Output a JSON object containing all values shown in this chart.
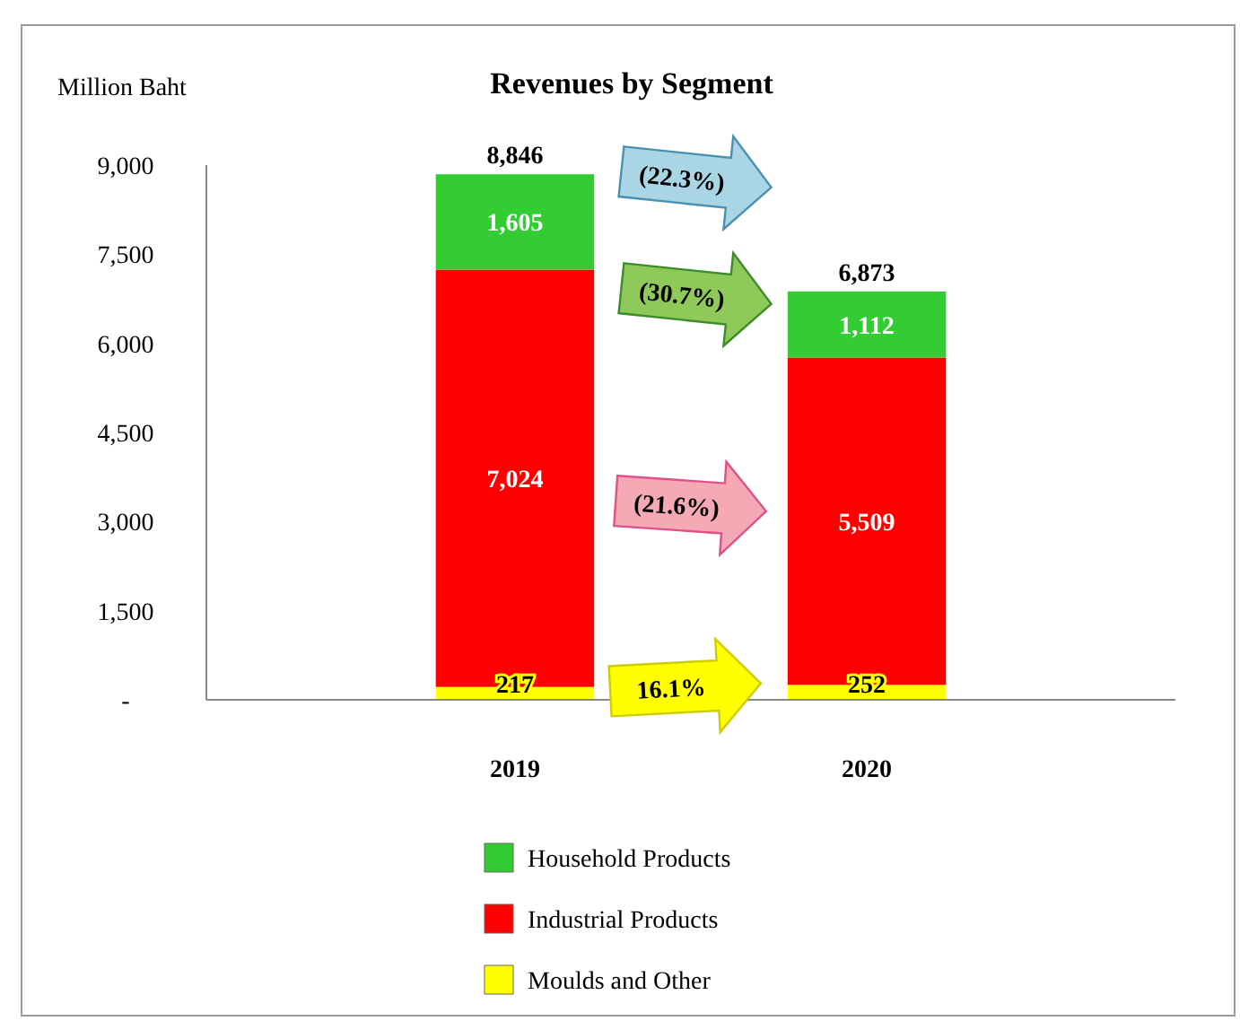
{
  "chart_data": {
    "type": "bar",
    "title": "Revenues by Segment",
    "ylabel": "Million  Baht",
    "categories": [
      "2019",
      "2020"
    ],
    "stacked": true,
    "series": [
      {
        "name": "Moulds and Other",
        "color": "#ffff00",
        "values": [
          217,
          252
        ],
        "value_labels": [
          "217",
          "252"
        ]
      },
      {
        "name": "Industrial Products",
        "color": "#ff0000",
        "values": [
          7024,
          5509
        ],
        "value_labels": [
          "7,024",
          "5,509"
        ]
      },
      {
        "name": "Household Products",
        "color": "#33cc33",
        "values": [
          1605,
          1112
        ],
        "value_labels": [
          "1,605",
          "1,112"
        ]
      }
    ],
    "ylim": [
      0,
      9000
    ],
    "yticks": [
      {
        "value": 0,
        "label": "-"
      },
      {
        "value": 1500,
        "label": "1,500"
      },
      {
        "value": 3000,
        "label": "3,000"
      },
      {
        "value": 4500,
        "label": "4,500"
      },
      {
        "value": 6000,
        "label": "6,000"
      },
      {
        "value": 7500,
        "label": "7,500"
      },
      {
        "value": 9000,
        "label": "9,000"
      }
    ],
    "totals": [
      "8,846",
      "6,873"
    ],
    "annotations": [
      "(22.3%)",
      "(30.7%)",
      "(21.6%)",
      "16.1%"
    ],
    "legend": "bottom",
    "grid": false
  }
}
